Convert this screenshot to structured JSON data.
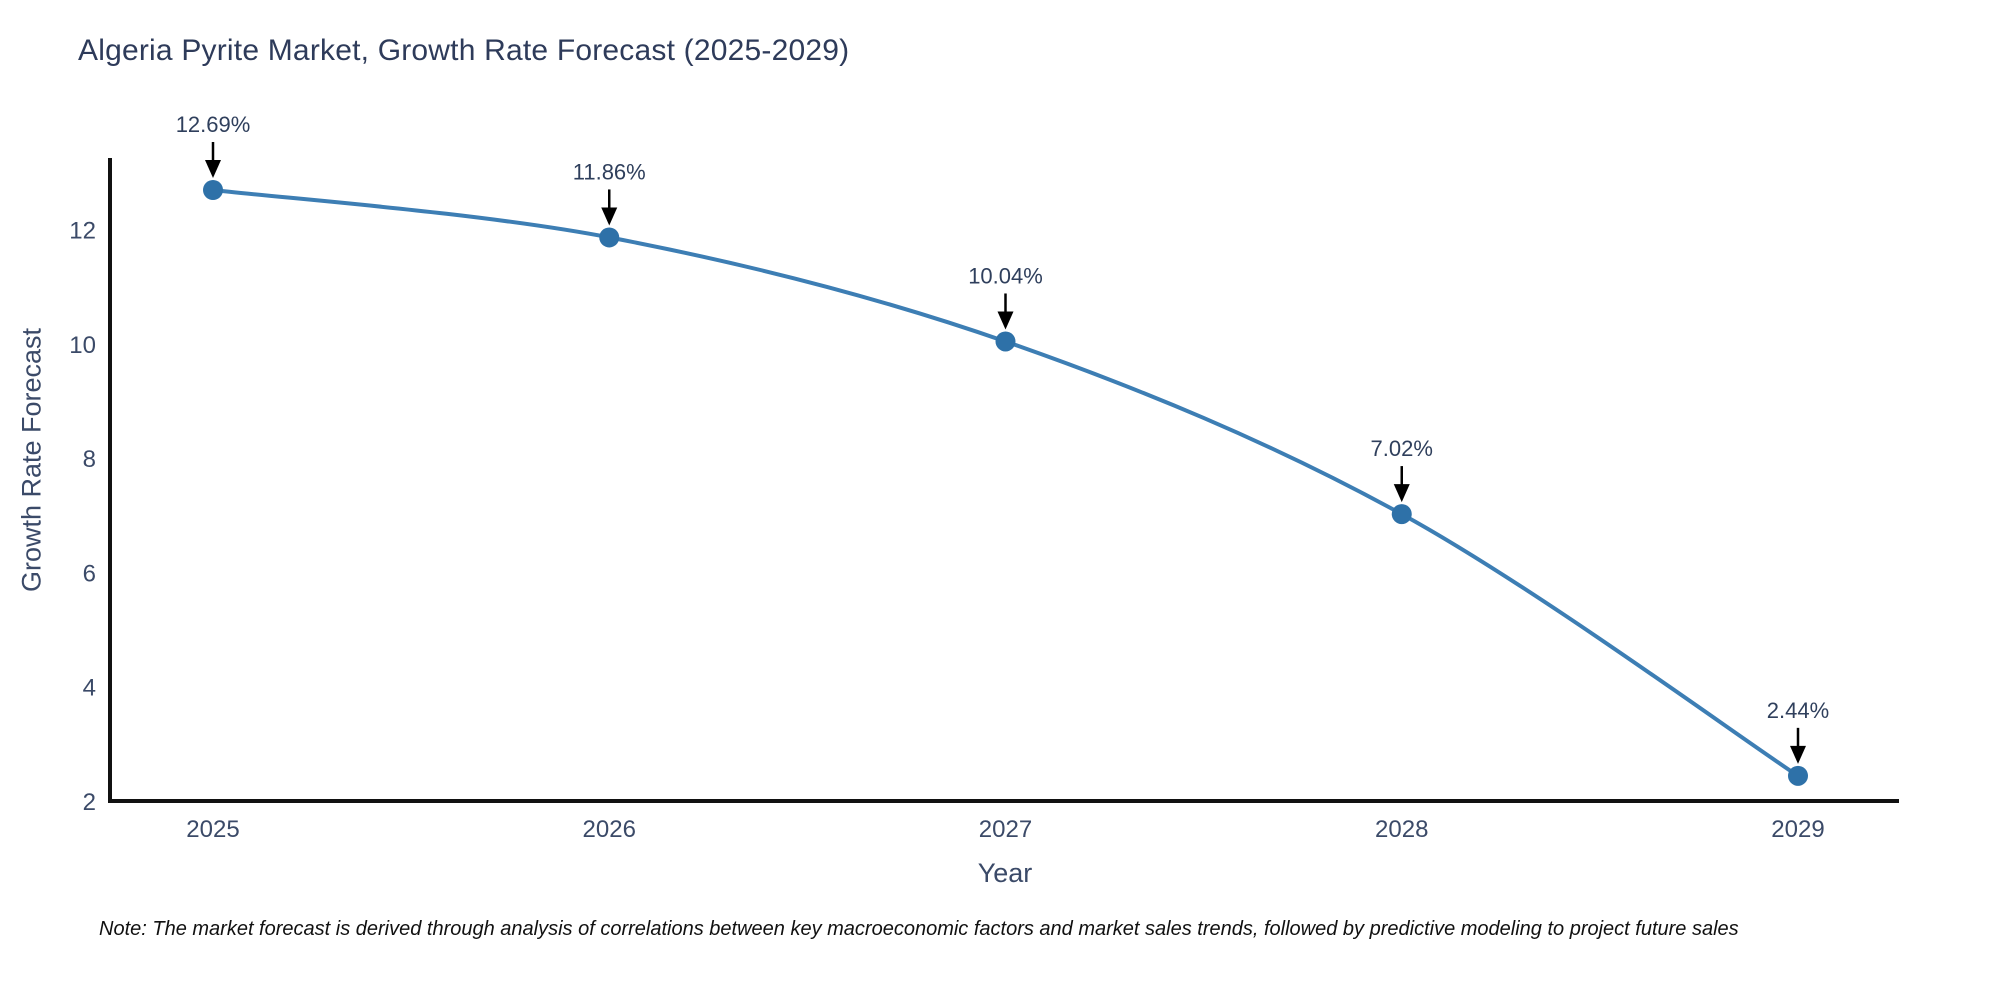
{
  "page": {
    "background": "#ffffff"
  },
  "chart_data": {
    "type": "line",
    "title": "Algeria Pyrite Market, Growth Rate Forecast (2025-2029)",
    "xlabel": "Year",
    "ylabel": "Growth Rate Forecast",
    "categories": [
      "2025",
      "2026",
      "2027",
      "2028",
      "2029"
    ],
    "series": [
      {
        "name": "Growth Rate Forecast",
        "values": [
          12.69,
          11.86,
          10.04,
          7.02,
          2.44
        ],
        "point_labels": [
          "12.69%",
          "11.86%",
          "10.04%",
          "7.02%",
          "2.44%"
        ]
      }
    ],
    "y_ticks": [
      2,
      4,
      6,
      8,
      10,
      12
    ],
    "ylim": [
      2,
      13.25
    ],
    "grid": false,
    "legend_position": "none",
    "curve": "spline",
    "annotations_have_arrows": true,
    "line_color": "#3d7eb4",
    "marker_color": "#2e71a8",
    "axis_color": "#111111",
    "tick_color": "#3b4a68",
    "title_color": "#2e3b5a",
    "annotation_color": "#2f3f5c",
    "arrow_color": "#000000"
  },
  "note": {
    "text": "Note: The market forecast is derived through analysis of correlations between key macroeconomic factors and market sales trends, followed by predictive modeling to project future sales"
  }
}
